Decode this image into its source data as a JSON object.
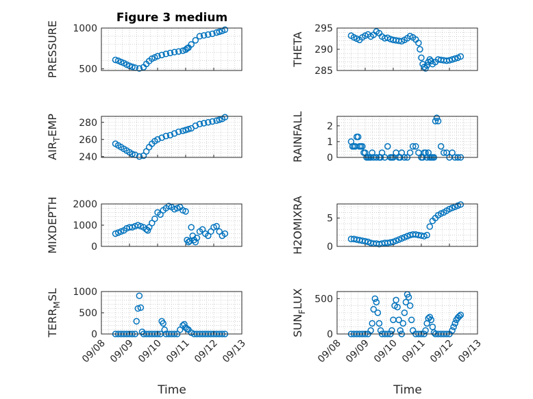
{
  "figure": {
    "title": "Figure 3 medium",
    "xlabel": "Time"
  },
  "colors": {
    "marker": "#0072BD",
    "axis": "#262626",
    "grid": "#b0b0b0"
  },
  "chart_data": [
    {
      "type": "scatter",
      "ylabel": "PRESSURE",
      "ylabel_sub": "",
      "xlim": [
        "09/08",
        "09/13"
      ],
      "ylim": [
        480,
        1000
      ],
      "yticks": [
        500,
        1000
      ],
      "xticks": [
        "09/08",
        "09/09",
        "09/10",
        "09/11",
        "09/12",
        "09/13"
      ],
      "grid": true,
      "show_xticks": false,
      "x": [
        8.5,
        8.6,
        8.7,
        8.8,
        8.9,
        9.0,
        9.1,
        9.2,
        9.35,
        9.5,
        9.6,
        9.7,
        9.8,
        9.9,
        10.0,
        10.15,
        10.3,
        10.45,
        10.6,
        10.75,
        10.9,
        11.0,
        11.05,
        11.1,
        11.2,
        11.35,
        11.5,
        11.65,
        11.8,
        11.95,
        12.1,
        12.2,
        12.3,
        12.4
      ],
      "y": [
        610,
        600,
        585,
        570,
        552,
        538,
        525,
        515,
        505,
        520,
        560,
        595,
        625,
        640,
        655,
        670,
        683,
        695,
        705,
        713,
        722,
        735,
        750,
        760,
        800,
        850,
        900,
        910,
        920,
        930,
        945,
        955,
        965,
        980
      ]
    },
    {
      "type": "scatter",
      "ylabel": "THETA",
      "ylabel_sub": "",
      "xlim": [
        "09/08",
        "09/13"
      ],
      "ylim": [
        285,
        295
      ],
      "yticks": [
        285,
        290,
        295
      ],
      "xticks": [
        "09/08",
        "09/09",
        "09/10",
        "09/11",
        "09/12",
        "09/13"
      ],
      "grid": true,
      "show_xticks": false,
      "x": [
        8.5,
        8.6,
        8.7,
        8.8,
        8.9,
        9.0,
        9.1,
        9.2,
        9.3,
        9.4,
        9.5,
        9.6,
        9.7,
        9.8,
        9.9,
        10.0,
        10.1,
        10.2,
        10.3,
        10.4,
        10.5,
        10.6,
        10.7,
        10.8,
        10.9,
        10.95,
        11.0,
        11.05,
        11.1,
        11.15,
        11.2,
        11.25,
        11.3,
        11.35,
        11.4,
        11.5,
        11.6,
        11.7,
        11.8,
        11.9,
        12.0,
        12.1,
        12.2,
        12.3,
        12.4
      ],
      "y": [
        293.2,
        292.8,
        292.5,
        292.2,
        292.8,
        293.2,
        293.5,
        293.0,
        293.4,
        294.2,
        293.8,
        293.0,
        292.6,
        292.7,
        292.4,
        292.2,
        292.1,
        292.0,
        291.9,
        292.2,
        292.6,
        293.1,
        292.8,
        292.3,
        291.5,
        290.0,
        288.0,
        286.5,
        285.8,
        285.5,
        286.2,
        287.0,
        287.6,
        287.2,
        286.5,
        287.0,
        287.6,
        287.5,
        287.4,
        287.3,
        287.4,
        287.6,
        287.8,
        288.0,
        288.3
      ]
    },
    {
      "type": "scatter",
      "ylabel": "AIR",
      "ylabel_sub": "T",
      "ylabel_after": "EMP",
      "xlim": [
        "09/08",
        "09/13"
      ],
      "ylim": [
        239,
        287
      ],
      "yticks": [
        240,
        260,
        280
      ],
      "xticks": [
        "09/08",
        "09/09",
        "09/10",
        "09/11",
        "09/12",
        "09/13"
      ],
      "grid": true,
      "show_xticks": false,
      "x": [
        8.5,
        8.6,
        8.7,
        8.8,
        8.9,
        9.0,
        9.1,
        9.2,
        9.35,
        9.5,
        9.6,
        9.7,
        9.8,
        9.9,
        10.0,
        10.15,
        10.3,
        10.45,
        10.6,
        10.75,
        10.9,
        11.0,
        11.1,
        11.2,
        11.35,
        11.5,
        11.65,
        11.8,
        11.95,
        12.1,
        12.2,
        12.3,
        12.4
      ],
      "y": [
        255,
        253,
        251,
        249,
        247,
        245,
        243,
        242,
        240,
        241,
        246,
        251,
        255,
        258,
        260,
        262,
        264,
        265,
        267,
        269,
        270,
        271,
        272,
        273,
        276,
        278,
        279,
        280,
        281,
        282,
        283,
        284,
        286
      ]
    },
    {
      "type": "scatter",
      "ylabel": "RAINFALL",
      "ylabel_sub": "",
      "xlim": [
        "09/08",
        "09/13"
      ],
      "ylim": [
        0,
        2.6
      ],
      "yticks": [
        0,
        1,
        2
      ],
      "xticks": [
        "09/08",
        "09/09",
        "09/10",
        "09/11",
        "09/12",
        "09/13"
      ],
      "grid": true,
      "show_xticks": false,
      "x": [
        8.5,
        8.55,
        8.6,
        8.65,
        8.7,
        8.75,
        8.8,
        8.85,
        8.9,
        8.95,
        9.0,
        9.05,
        9.1,
        9.15,
        9.2,
        9.25,
        9.3,
        9.4,
        9.5,
        9.55,
        9.6,
        9.7,
        9.8,
        9.9,
        9.95,
        10.0,
        10.1,
        10.2,
        10.25,
        10.3,
        10.4,
        10.5,
        10.6,
        10.7,
        10.8,
        10.9,
        11.0,
        11.05,
        11.1,
        11.15,
        11.2,
        11.25,
        11.3,
        11.35,
        11.4,
        11.45,
        11.5,
        11.55,
        11.6,
        11.7,
        11.8,
        11.9,
        12.0,
        12.1,
        12.2,
        12.3,
        12.4
      ],
      "y": [
        1.0,
        0.7,
        0.7,
        0.7,
        1.3,
        1.3,
        0.7,
        0.7,
        0.7,
        0.3,
        0.3,
        0.0,
        0.0,
        0.0,
        0.0,
        0.3,
        0.0,
        0.0,
        0.0,
        0.0,
        0.3,
        0.0,
        0.7,
        0.0,
        0.0,
        0.0,
        0.3,
        0.0,
        0.0,
        0.3,
        0.0,
        0.0,
        0.3,
        0.7,
        0.7,
        0.3,
        0.0,
        0.0,
        0.3,
        0.3,
        0.0,
        0.3,
        0.0,
        0.0,
        0.0,
        0.0,
        2.3,
        2.5,
        2.3,
        0.7,
        0.3,
        0.3,
        0.0,
        0.3,
        0.0,
        0.0,
        0.0
      ]
    },
    {
      "type": "scatter",
      "ylabel": "MIXDEPTH",
      "ylabel_sub": "",
      "xlim": [
        "09/08",
        "09/13"
      ],
      "ylim": [
        0,
        2000
      ],
      "yticks": [
        0,
        1000,
        2000
      ],
      "xticks": [
        "09/08",
        "09/09",
        "09/10",
        "09/11",
        "09/12",
        "09/13"
      ],
      "grid": true,
      "show_xticks": false,
      "x": [
        8.5,
        8.6,
        8.7,
        8.8,
        8.9,
        9.0,
        9.1,
        9.2,
        9.3,
        9.4,
        9.5,
        9.6,
        9.65,
        9.7,
        9.8,
        9.9,
        10.0,
        10.1,
        10.2,
        10.3,
        10.4,
        10.5,
        10.6,
        10.7,
        10.8,
        10.9,
        11.0,
        11.05,
        11.1,
        11.15,
        11.2,
        11.25,
        11.3,
        11.35,
        11.4,
        11.5,
        11.6,
        11.7,
        11.8,
        11.9,
        12.0,
        12.1,
        12.2,
        12.3,
        12.4
      ],
      "y": [
        600,
        650,
        700,
        750,
        850,
        900,
        900,
        950,
        1000,
        950,
        900,
        800,
        750,
        900,
        1100,
        1300,
        1600,
        1500,
        1700,
        1800,
        1900,
        1850,
        1750,
        1800,
        1850,
        1700,
        1650,
        300,
        200,
        250,
        900,
        500,
        300,
        200,
        400,
        700,
        800,
        600,
        500,
        700,
        900,
        950,
        700,
        500,
        600
      ]
    },
    {
      "type": "scatter",
      "ylabel": "H2OMIXRA",
      "ylabel_sub": "",
      "xlim": [
        "09/08",
        "09/13"
      ],
      "ylim": [
        0,
        7.5
      ],
      "yticks": [
        0,
        5
      ],
      "xticks": [
        "09/08",
        "09/09",
        "09/10",
        "09/11",
        "09/12",
        "09/13"
      ],
      "grid": true,
      "show_xticks": false,
      "x": [
        8.5,
        8.6,
        8.7,
        8.8,
        8.9,
        9.0,
        9.1,
        9.2,
        9.3,
        9.4,
        9.5,
        9.6,
        9.7,
        9.8,
        9.9,
        10.0,
        10.1,
        10.2,
        10.3,
        10.4,
        10.5,
        10.6,
        10.7,
        10.8,
        10.9,
        11.0,
        11.1,
        11.2,
        11.3,
        11.4,
        11.5,
        11.6,
        11.7,
        11.8,
        11.9,
        12.0,
        12.1,
        12.2,
        12.3,
        12.4
      ],
      "y": [
        1.3,
        1.3,
        1.2,
        1.1,
        1.0,
        0.9,
        0.8,
        0.6,
        0.5,
        0.5,
        0.4,
        0.5,
        0.6,
        0.6,
        0.7,
        0.8,
        1.0,
        1.2,
        1.4,
        1.6,
        1.8,
        2.0,
        2.1,
        2.1,
        2.0,
        1.9,
        1.8,
        2.0,
        3.5,
        4.5,
        5.0,
        5.5,
        5.8,
        6.0,
        6.3,
        6.6,
        6.8,
        7.0,
        7.2,
        7.4
      ]
    },
    {
      "type": "scatter",
      "ylabel": "TERR",
      "ylabel_sub": "M",
      "ylabel_after": "SL",
      "xlim": [
        "09/08",
        "09/13"
      ],
      "ylim": [
        0,
        1000
      ],
      "yticks": [
        0,
        500,
        1000
      ],
      "xticks": [
        "09/08",
        "09/09",
        "09/10",
        "09/11",
        "09/12",
        "09/13"
      ],
      "grid": true,
      "show_xticks": true,
      "x": [
        8.5,
        8.6,
        8.7,
        8.8,
        8.9,
        9.0,
        9.1,
        9.2,
        9.25,
        9.3,
        9.35,
        9.4,
        9.45,
        9.5,
        9.6,
        9.7,
        9.8,
        9.9,
        10.0,
        10.1,
        10.15,
        10.2,
        10.25,
        10.3,
        10.4,
        10.5,
        10.6,
        10.7,
        10.8,
        10.9,
        10.95,
        11.0,
        11.05,
        11.1,
        11.2,
        11.3,
        11.4,
        11.5,
        11.6,
        11.7,
        11.8,
        11.9,
        12.0,
        12.1,
        12.2,
        12.3,
        12.4
      ],
      "y": [
        0,
        0,
        0,
        0,
        0,
        0,
        0,
        0,
        300,
        600,
        900,
        620,
        50,
        0,
        0,
        0,
        0,
        0,
        0,
        0,
        300,
        250,
        100,
        0,
        0,
        0,
        0,
        0,
        100,
        200,
        230,
        150,
        120,
        100,
        30,
        0,
        0,
        0,
        0,
        0,
        0,
        0,
        0,
        0,
        0,
        0,
        0
      ]
    },
    {
      "type": "scatter",
      "ylabel": "SUN",
      "ylabel_sub": "F",
      "ylabel_after": "LUX",
      "xlim": [
        "09/08",
        "09/13"
      ],
      "ylim": [
        0,
        600
      ],
      "yticks": [
        0,
        500
      ],
      "xticks": [
        "09/08",
        "09/09",
        "09/10",
        "09/11",
        "09/12",
        "09/13"
      ],
      "grid": true,
      "show_xticks": true,
      "x": [
        8.5,
        8.6,
        8.7,
        8.8,
        8.9,
        9.0,
        9.1,
        9.2,
        9.25,
        9.3,
        9.35,
        9.4,
        9.45,
        9.5,
        9.55,
        9.6,
        9.7,
        9.8,
        9.9,
        9.95,
        10.0,
        10.05,
        10.1,
        10.15,
        10.2,
        10.25,
        10.3,
        10.35,
        10.4,
        10.45,
        10.5,
        10.55,
        10.6,
        10.65,
        10.7,
        10.8,
        10.9,
        11.0,
        11.1,
        11.15,
        11.2,
        11.25,
        11.3,
        11.35,
        11.4,
        11.45,
        11.5,
        11.6,
        11.7,
        11.8,
        11.9,
        12.0,
        12.1,
        12.15,
        12.2,
        12.25,
        12.3,
        12.35,
        12.4
      ],
      "y": [
        0,
        0,
        0,
        0,
        0,
        0,
        0,
        50,
        150,
        350,
        500,
        450,
        300,
        150,
        50,
        0,
        0,
        0,
        0,
        50,
        200,
        400,
        480,
        380,
        200,
        50,
        0,
        150,
        300,
        450,
        560,
        520,
        400,
        200,
        50,
        0,
        0,
        0,
        0,
        50,
        150,
        220,
        240,
        200,
        100,
        20,
        0,
        0,
        0,
        0,
        0,
        0,
        50,
        100,
        150,
        200,
        230,
        250,
        270
      ]
    }
  ]
}
